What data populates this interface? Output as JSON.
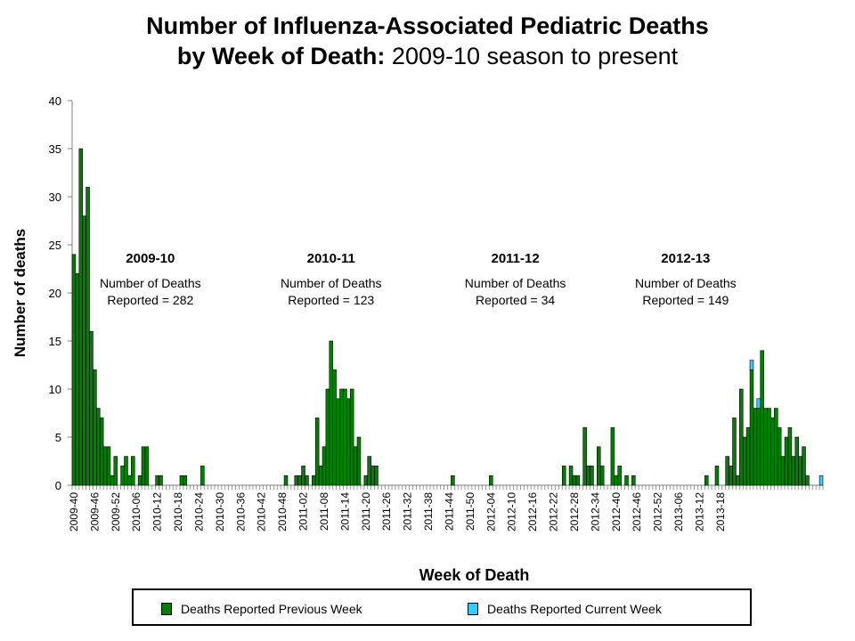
{
  "title": {
    "line1": "Number of Influenza-Associated Pediatric Deaths",
    "line2_bold": "by Week of Death:",
    "line2_normal": "2009-10 season to present"
  },
  "colors": {
    "previous": "#008000",
    "current": "#33ccff",
    "axis": "#808080"
  },
  "legend": {
    "previous_label": "Deaths Reported Previous Week",
    "current_label": "Deaths Reported Current Week"
  },
  "chart_data": {
    "type": "bar",
    "stacked": true,
    "ylabel": "Number of deaths",
    "xlabel": "Week of Death",
    "ylim": [
      0,
      40
    ],
    "yticks": [
      0,
      5,
      10,
      15,
      20,
      25,
      30,
      35,
      40
    ],
    "x_tick_labels": [
      "2009-40",
      "2009-46",
      "2009-52",
      "2010-06",
      "2010-12",
      "2010-18",
      "2010-24",
      "2010-30",
      "2010-36",
      "2010-42",
      "2010-48",
      "2011-02",
      "2011-08",
      "2011-14",
      "2011-20",
      "2011-26",
      "2011-32",
      "2011-38",
      "2011-44",
      "2011-50",
      "2012-04",
      "2012-10",
      "2012-16",
      "2012-22",
      "2012-28",
      "2012-34",
      "2012-40",
      "2012-46",
      "2012-52",
      "2013-06",
      "2013-12",
      "2013-18"
    ],
    "weeks_between_ticks": 6,
    "series": [
      {
        "name": "Deaths Reported Previous Week",
        "values": [
          24,
          22,
          35,
          28,
          31,
          16,
          12,
          8,
          7,
          4,
          4,
          1,
          3,
          0,
          2,
          3,
          1,
          3,
          0,
          1,
          4,
          4,
          0,
          0,
          1,
          1,
          0,
          0,
          0,
          0,
          0,
          1,
          1,
          0,
          0,
          0,
          0,
          2,
          0,
          0,
          0,
          0,
          0,
          0,
          0,
          0,
          0,
          0,
          0,
          0,
          0,
          0,
          0,
          0,
          0,
          0,
          0,
          0,
          0,
          0,
          0,
          1,
          0,
          0,
          1,
          1,
          2,
          1,
          0,
          1,
          7,
          2,
          4,
          10,
          15,
          12,
          9,
          10,
          10,
          9,
          10,
          4,
          5,
          0,
          1,
          3,
          2,
          2,
          0,
          0,
          0,
          0,
          0,
          0,
          0,
          0,
          0,
          0,
          0,
          0,
          0,
          0,
          0,
          0,
          0,
          0,
          0,
          0,
          0,
          1,
          0,
          0,
          0,
          0,
          0,
          0,
          0,
          0,
          0,
          0,
          1,
          0,
          0,
          0,
          0,
          0,
          0,
          0,
          0,
          0,
          0,
          0,
          0,
          0,
          0,
          0,
          0,
          0,
          0,
          0,
          0,
          2,
          0,
          2,
          1,
          1,
          0,
          6,
          2,
          2,
          0,
          4,
          2,
          0,
          0,
          6,
          1,
          2,
          0,
          1,
          0,
          1,
          0,
          0,
          0,
          0,
          0,
          0,
          0,
          0,
          0,
          0,
          0,
          0,
          0,
          0,
          0,
          0,
          0,
          0,
          0,
          0,
          1,
          0,
          0,
          2,
          0,
          0,
          3,
          2,
          7,
          1,
          10,
          5,
          6,
          12,
          8,
          8,
          14,
          8,
          8,
          7,
          8,
          6,
          3,
          5,
          6,
          3,
          5,
          3,
          4,
          1,
          0,
          0,
          0,
          0
        ]
      },
      {
        "name": "Deaths Reported Current Week",
        "values": [
          0,
          0,
          0,
          0,
          0,
          0,
          0,
          0,
          0,
          0,
          0,
          0,
          0,
          0,
          0,
          0,
          0,
          0,
          0,
          0,
          0,
          0,
          0,
          0,
          0,
          0,
          0,
          0,
          0,
          0,
          0,
          0,
          0,
          0,
          0,
          0,
          0,
          0,
          0,
          0,
          0,
          0,
          0,
          0,
          0,
          0,
          0,
          0,
          0,
          0,
          0,
          0,
          0,
          0,
          0,
          0,
          0,
          0,
          0,
          0,
          0,
          0,
          0,
          0,
          0,
          0,
          0,
          0,
          0,
          0,
          0,
          0,
          0,
          0,
          0,
          0,
          0,
          0,
          0,
          0,
          0,
          0,
          0,
          0,
          0,
          0,
          0,
          0,
          0,
          0,
          0,
          0,
          0,
          0,
          0,
          0,
          0,
          0,
          0,
          0,
          0,
          0,
          0,
          0,
          0,
          0,
          0,
          0,
          0,
          0,
          0,
          0,
          0,
          0,
          0,
          0,
          0,
          0,
          0,
          0,
          0,
          0,
          0,
          0,
          0,
          0,
          0,
          0,
          0,
          0,
          0,
          0,
          0,
          0,
          0,
          0,
          0,
          0,
          0,
          0,
          0,
          0,
          0,
          0,
          0,
          0,
          0,
          0,
          0,
          0,
          0,
          0,
          0,
          0,
          0,
          0,
          0,
          0,
          0,
          0,
          0,
          0,
          0,
          0,
          0,
          0,
          0,
          0,
          0,
          0,
          0,
          0,
          0,
          0,
          0,
          0,
          0,
          0,
          0,
          0,
          0,
          0,
          0,
          0,
          0,
          0,
          0,
          0,
          0,
          0,
          0,
          0,
          0,
          0,
          0,
          1,
          0,
          1,
          0,
          0,
          0,
          0,
          0,
          0,
          0,
          0,
          0,
          0,
          0,
          0,
          0,
          0,
          0,
          0,
          0,
          1
        ]
      }
    ],
    "annotations": [
      {
        "season": "2009-10",
        "line1": "Number of Deaths",
        "line2": "Reported = 282",
        "week_index": 22
      },
      {
        "season": "2010-11",
        "line1": "Number of Deaths",
        "line2": "Reported = 123",
        "week_index": 74
      },
      {
        "season": "2011-12",
        "line1": "Number of Deaths",
        "line2": "Reported = 34",
        "week_index": 127
      },
      {
        "season": "2012-13",
        "line1": "Number of Deaths",
        "line2": "Reported = 149",
        "week_index": 176
      }
    ],
    "grid": false
  }
}
